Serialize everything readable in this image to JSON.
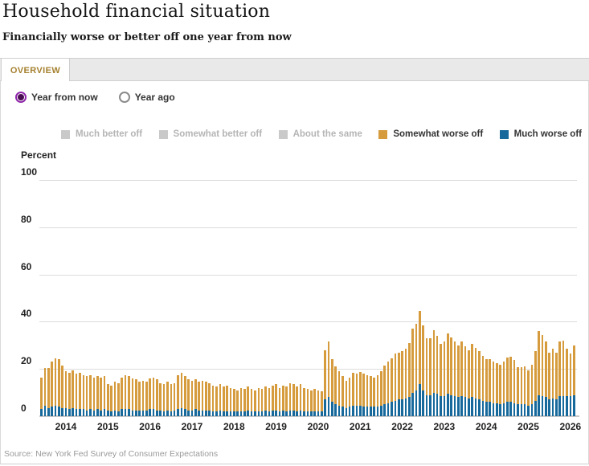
{
  "header": {
    "title": "Household financial situation",
    "subtitle": "Financially worse or better off one year from now"
  },
  "tabs": [
    {
      "label": "OVERVIEW",
      "active": true
    }
  ],
  "controls": {
    "radios": [
      {
        "label": "Year from now",
        "selected": true
      },
      {
        "label": "Year ago",
        "selected": false
      }
    ]
  },
  "legend": [
    {
      "label": "Much better off",
      "color": "#c9c9c9",
      "enabled": false
    },
    {
      "label": "Somewhat better off",
      "color": "#c9c9c9",
      "enabled": false
    },
    {
      "label": "About the same",
      "color": "#c9c9c9",
      "enabled": false
    },
    {
      "label": "Somewhat worse off",
      "color": "#d59b3d",
      "enabled": true
    },
    {
      "label": "Much worse off",
      "color": "#17699c",
      "enabled": true
    }
  ],
  "colors": {
    "tab_accent": "#a5802f",
    "radio_selected": "#8e24aa",
    "somewhat_worse": "#d59b3d",
    "much_worse": "#17699c",
    "gridline": "#dcdcdc"
  },
  "chart_data": {
    "type": "bar",
    "stacked": true,
    "unit_label": "Percent",
    "ylim": [
      0,
      100
    ],
    "yticks": [
      0,
      20,
      40,
      60,
      80,
      100
    ],
    "x_start": "2013-06",
    "x_end": "2026-02",
    "x_frequency": "monthly",
    "x_tick_labels": [
      "2014",
      "2015",
      "2016",
      "2017",
      "2018",
      "2019",
      "2020",
      "2021",
      "2022",
      "2023",
      "2024",
      "2025",
      "2026"
    ],
    "grid": true,
    "legend_position": "top",
    "series": [
      {
        "name": "Much worse off",
        "color": "#17699c",
        "values": [
          3,
          4.5,
          3.5,
          4,
          4.5,
          4,
          3.5,
          3.5,
          3,
          3.5,
          3,
          3,
          3,
          2.5,
          3,
          2.5,
          3,
          2.5,
          3,
          2.5,
          2,
          2.5,
          2,
          3,
          3,
          3,
          2.5,
          2.5,
          2.5,
          2.5,
          2.5,
          3,
          3,
          2.5,
          2.5,
          2,
          2.5,
          2,
          2.5,
          3,
          3.5,
          3,
          2.5,
          2.5,
          3,
          2.5,
          2.5,
          2.5,
          2.5,
          2,
          2,
          2.5,
          2,
          2,
          2,
          2,
          2,
          2,
          2,
          2.5,
          2,
          2,
          2,
          2,
          2.5,
          2,
          2.5,
          2.5,
          2,
          2.5,
          2,
          2.5,
          2.5,
          2,
          2.5,
          2,
          2,
          2,
          2,
          2,
          2,
          7,
          8,
          6,
          5,
          4.5,
          4,
          3.5,
          4,
          4.5,
          4.5,
          4.5,
          4,
          4,
          4,
          4,
          4,
          4.5,
          5,
          5.5,
          6,
          6.5,
          7,
          7,
          7.5,
          8,
          10,
          11,
          13.5,
          11,
          9,
          9,
          10,
          9.5,
          8.5,
          8.5,
          9.5,
          9,
          8.5,
          8,
          8.5,
          8,
          7.5,
          8,
          7.5,
          7,
          6.5,
          6,
          6,
          5.5,
          5.5,
          5,
          5.5,
          6,
          6,
          5.5,
          5,
          5,
          5,
          4.5,
          5,
          6.5,
          9,
          8.5,
          8,
          7,
          7.5,
          7,
          8.5,
          8.5,
          8.5,
          8.5,
          9
        ]
      },
      {
        "name": "Somewhat worse off",
        "color": "#d59b3d",
        "values": [
          13.5,
          16,
          17,
          19,
          20,
          20,
          18,
          15.5,
          15.5,
          16,
          15,
          15.5,
          14.5,
          14.5,
          14.5,
          14,
          14,
          14,
          14,
          11,
          11,
          12,
          12,
          13.5,
          14.5,
          14,
          13.5,
          13,
          12,
          12.5,
          12,
          13,
          13.5,
          13,
          11.5,
          11.5,
          12,
          11.5,
          11.5,
          14.5,
          15,
          14,
          13,
          12.5,
          12.5,
          12,
          12.5,
          12,
          11.5,
          11,
          10.5,
          11,
          10.5,
          11,
          10,
          9.5,
          9,
          10,
          9.5,
          10,
          9.5,
          9,
          10,
          9.5,
          10,
          10,
          10.5,
          11,
          10,
          10.5,
          10.5,
          11.5,
          11,
          10.5,
          11,
          10,
          9.5,
          9,
          9.5,
          9,
          8.5,
          21,
          23.5,
          18,
          16,
          14.5,
          13,
          11.5,
          12.5,
          14,
          13.5,
          14.3,
          14,
          13.5,
          13,
          12.5,
          13.5,
          14.5,
          16.5,
          17.5,
          18.5,
          20,
          20,
          20.5,
          21,
          23,
          27,
          28,
          31,
          27.5,
          24,
          24,
          26.5,
          24.5,
          22,
          23,
          25.5,
          24.5,
          23,
          22,
          23,
          21.5,
          20.5,
          22.5,
          21.5,
          20.5,
          19,
          18.2,
          18.2,
          17.8,
          17,
          16.9,
          17.5,
          19,
          19.3,
          18.3,
          15.8,
          15.6,
          16,
          15,
          16.9,
          21,
          27,
          25.8,
          23.5,
          20,
          21.2,
          20,
          23,
          23.5,
          20,
          18,
          21
        ]
      }
    ]
  },
  "footer": {
    "source": "Source: New York Fed Survey of Consumer Expectations"
  }
}
